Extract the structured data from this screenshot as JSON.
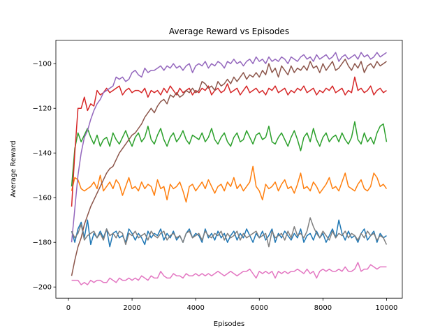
{
  "chart_data": {
    "type": "line",
    "title": "Average Reward vs Episodes",
    "x_label": "Episodes",
    "y_label": "Average Reward",
    "xlim": [
      -395,
      10495
    ],
    "ylim": [
      -205,
      -89.5
    ],
    "xticks": [
      0,
      2000,
      4000,
      6000,
      8000,
      10000
    ],
    "yticks": [
      {
        "value": -200,
        "label": "−200"
      },
      {
        "value": -180,
        "label": "−180"
      },
      {
        "value": -160,
        "label": "−160"
      },
      {
        "value": -140,
        "label": "−140"
      },
      {
        "value": -120,
        "label": "−120"
      },
      {
        "value": -100,
        "label": "−100"
      }
    ],
    "x": [
      100,
      200,
      300,
      400,
      500,
      600,
      700,
      800,
      900,
      1000,
      1100,
      1200,
      1300,
      1400,
      1500,
      1600,
      1700,
      1800,
      1900,
      2000,
      2100,
      2200,
      2300,
      2400,
      2500,
      2600,
      2700,
      2800,
      2900,
      3000,
      3100,
      3200,
      3300,
      3400,
      3500,
      3600,
      3700,
      3800,
      3900,
      4000,
      4100,
      4200,
      4300,
      4400,
      4500,
      4600,
      4700,
      4800,
      4900,
      5000,
      5100,
      5200,
      5300,
      5400,
      5500,
      5600,
      5700,
      5800,
      5900,
      6000,
      6100,
      6200,
      6300,
      6400,
      6500,
      6600,
      6700,
      6800,
      6900,
      7000,
      7100,
      7200,
      7300,
      7400,
      7500,
      7600,
      7700,
      7800,
      7900,
      8000,
      8100,
      8200,
      8300,
      8400,
      8500,
      8600,
      8700,
      8800,
      8900,
      9000,
      9100,
      9200,
      9300,
      9400,
      9500,
      9600,
      9700,
      9800,
      9900,
      10000
    ],
    "series": [
      {
        "color": "#1f77b4",
        "values": [
          -175,
          -180,
          -174,
          -171,
          -178,
          -170,
          -181,
          -176,
          -178,
          -175,
          -178,
          -174,
          -182,
          -176,
          -175,
          -178,
          -177,
          -180,
          -174,
          -176,
          -179,
          -176,
          -178,
          -181,
          -175,
          -178,
          -176,
          -177,
          -174,
          -179,
          -176,
          -178,
          -175,
          -179,
          -177,
          -180,
          -176,
          -174,
          -178,
          -176,
          -177,
          -180,
          -174,
          -178,
          -176,
          -179,
          -175,
          -178,
          -176,
          -180,
          -177,
          -175,
          -179,
          -176,
          -178,
          -174,
          -177,
          -180,
          -176,
          -178,
          -175,
          -179,
          -177,
          -174,
          -180,
          -176,
          -178,
          -175,
          -177,
          -179,
          -176,
          -178,
          -174,
          -180,
          -177,
          -176,
          -179,
          -175,
          -178,
          -176,
          -180,
          -177,
          -174,
          -178,
          -170,
          -176,
          -179,
          -175,
          -178,
          -177,
          -180,
          -176,
          -174,
          -179,
          -177,
          -175,
          -180,
          -176,
          -178,
          -177
        ]
      },
      {
        "color": "#ff7f0e",
        "values": [
          -157,
          -151,
          -152,
          -156,
          -157,
          -156,
          -155,
          -153,
          -156,
          -150,
          -157,
          -155,
          -153,
          -156,
          -152,
          -154,
          -159,
          -155,
          -151,
          -156,
          -155,
          -157,
          -153,
          -156,
          -154,
          -155,
          -159,
          -152,
          -156,
          -155,
          -161,
          -154,
          -156,
          -155,
          -153,
          -157,
          -162,
          -155,
          -154,
          -157,
          -155,
          -153,
          -156,
          -152,
          -155,
          -158,
          -155,
          -154,
          -157,
          -153,
          -155,
          -151,
          -156,
          -154,
          -157,
          -155,
          -153,
          -146,
          -155,
          -157,
          -161,
          -154,
          -156,
          -155,
          -153,
          -157,
          -154,
          -152,
          -156,
          -155,
          -158,
          -154,
          -149,
          -156,
          -155,
          -157,
          -153,
          -155,
          -158,
          -156,
          -154,
          -151,
          -156,
          -155,
          -157,
          -153,
          -149,
          -155,
          -156,
          -157,
          -154,
          -152,
          -156,
          -157,
          -155,
          -149,
          -151,
          -155,
          -154,
          -156
        ]
      },
      {
        "color": "#2ca02c",
        "values": [
          -155,
          -138,
          -131,
          -135,
          -132,
          -129,
          -133,
          -136,
          -132,
          -137,
          -134,
          -133,
          -137,
          -131,
          -134,
          -136,
          -133,
          -130,
          -134,
          -137,
          -133,
          -131,
          -135,
          -133,
          -128,
          -134,
          -136,
          -132,
          -129,
          -134,
          -137,
          -133,
          -131,
          -135,
          -133,
          -130,
          -134,
          -136,
          -132,
          -133,
          -134,
          -131,
          -135,
          -133,
          -129,
          -134,
          -136,
          -133,
          -131,
          -135,
          -137,
          -133,
          -131,
          -135,
          -134,
          -130,
          -133,
          -136,
          -132,
          -131,
          -134,
          -133,
          -128,
          -135,
          -136,
          -133,
          -131,
          -134,
          -137,
          -133,
          -130,
          -134,
          -139,
          -133,
          -131,
          -135,
          -129,
          -134,
          -137,
          -133,
          -131,
          -135,
          -133,
          -132,
          -135,
          -131,
          -134,
          -136,
          -133,
          -126,
          -134,
          -136,
          -131,
          -135,
          -133,
          -136,
          -131,
          -128,
          -127,
          -135
        ]
      },
      {
        "color": "#d62728",
        "values": [
          -164,
          -140,
          -120,
          -120,
          -115,
          -121,
          -118,
          -119,
          -112,
          -114,
          -113,
          -111,
          -113,
          -112,
          -111,
          -110,
          -114,
          -112,
          -111,
          -113,
          -112,
          -112,
          -113,
          -111,
          -115,
          -112,
          -113,
          -112,
          -114,
          -111,
          -113,
          -110,
          -112,
          -114,
          -111,
          -113,
          -112,
          -111,
          -114,
          -112,
          -113,
          -111,
          -112,
          -110,
          -114,
          -112,
          -111,
          -113,
          -112,
          -109,
          -113,
          -112,
          -111,
          -114,
          -112,
          -110,
          -113,
          -112,
          -111,
          -113,
          -112,
          -114,
          -111,
          -112,
          -110,
          -113,
          -112,
          -111,
          -114,
          -112,
          -113,
          -111,
          -112,
          -110,
          -113,
          -112,
          -111,
          -114,
          -112,
          -113,
          -111,
          -112,
          -110,
          -113,
          -112,
          -111,
          -114,
          -112,
          -113,
          -106,
          -112,
          -111,
          -113,
          -112,
          -110,
          -114,
          -112,
          -111,
          -113,
          -112
        ]
      },
      {
        "color": "#9467bd",
        "values": [
          -180,
          -165,
          -150,
          -140,
          -133,
          -130,
          -125,
          -121,
          -118,
          -116,
          -113,
          -112,
          -111,
          -110,
          -106,
          -107,
          -106,
          -108,
          -107,
          -104,
          -103,
          -105,
          -106,
          -102,
          -104,
          -103,
          -103,
          -102,
          -101,
          -103,
          -101,
          -102,
          -100,
          -102,
          -101,
          -103,
          -101,
          -100,
          -104,
          -101,
          -100,
          -101,
          -99,
          -102,
          -100,
          -101,
          -99,
          -100,
          -102,
          -99,
          -100,
          -98,
          -100,
          -99,
          -101,
          -99,
          -98,
          -100,
          -97,
          -99,
          -98,
          -100,
          -97,
          -99,
          -98,
          -99,
          -97,
          -98,
          -100,
          -97,
          -98,
          -99,
          -97,
          -96,
          -98,
          -97,
          -99,
          -96,
          -98,
          -97,
          -96,
          -98,
          -97,
          -95,
          -99,
          -97,
          -96,
          -98,
          -97,
          -96,
          -98,
          -95,
          -97,
          -96,
          -98,
          -97,
          -95,
          -97,
          -96,
          -95
        ]
      },
      {
        "color": "#8c564b",
        "values": [
          -195,
          -188,
          -182,
          -178,
          -172,
          -168,
          -164,
          -161,
          -158,
          -155,
          -152,
          -149,
          -147,
          -146,
          -143,
          -140,
          -138,
          -136,
          -134,
          -132,
          -131,
          -129,
          -127,
          -124,
          -122,
          -120,
          -122,
          -119,
          -117,
          -116,
          -118,
          -114,
          -115,
          -113,
          -115,
          -114,
          -112,
          -113,
          -111,
          -113,
          -112,
          -108,
          -109,
          -111,
          -110,
          -112,
          -108,
          -110,
          -109,
          -107,
          -109,
          -106,
          -108,
          -106,
          -104,
          -107,
          -105,
          -106,
          -104,
          -106,
          -103,
          -105,
          -100,
          -104,
          -102,
          -106,
          -101,
          -103,
          -105,
          -101,
          -104,
          -102,
          -103,
          -101,
          -103,
          -99,
          -102,
          -101,
          -104,
          -100,
          -103,
          -101,
          -99,
          -103,
          -102,
          -100,
          -98,
          -101,
          -103,
          -100,
          -102,
          -99,
          -104,
          -101,
          -100,
          -102,
          -99,
          -101,
          -100,
          -99
        ]
      },
      {
        "color": "#e377c2",
        "values": [
          -197,
          -197,
          -197,
          -199,
          -198,
          -199,
          -197,
          -198,
          -197,
          -197,
          -198,
          -198,
          -196,
          -197,
          -198,
          -196,
          -197,
          -197,
          -196,
          -197,
          -196,
          -197,
          -195,
          -196,
          -197,
          -195,
          -196,
          -196,
          -193,
          -195,
          -196,
          -196,
          -194,
          -195,
          -195,
          -196,
          -194,
          -195,
          -195,
          -194,
          -195,
          -194,
          -195,
          -194,
          -195,
          -194,
          -193,
          -194,
          -195,
          -194,
          -193,
          -194,
          -195,
          -194,
          -193,
          -193,
          -192,
          -194,
          -196,
          -193,
          -194,
          -193,
          -194,
          -193,
          -196,
          -193,
          -194,
          -193,
          -194,
          -193,
          -193,
          -192,
          -193,
          -194,
          -192,
          -194,
          -193,
          -196,
          -193,
          -192,
          -193,
          -192,
          -193,
          -193,
          -192,
          -193,
          -191,
          -193,
          -193,
          -192,
          -189,
          -193,
          -192,
          -192,
          -190,
          -191,
          -192,
          -191,
          -191,
          -191
        ]
      },
      {
        "color": "#7f7f7f",
        "values": [
          -175,
          -178,
          -176,
          -172,
          -179,
          -177,
          -176,
          -175,
          -178,
          -176,
          -179,
          -174,
          -177,
          -176,
          -178,
          -175,
          -176,
          -181,
          -176,
          -177,
          -175,
          -178,
          -177,
          -176,
          -179,
          -175,
          -177,
          -178,
          -176,
          -175,
          -179,
          -177,
          -176,
          -178,
          -177,
          -180,
          -176,
          -175,
          -178,
          -177,
          -176,
          -179,
          -175,
          -177,
          -178,
          -176,
          -177,
          -175,
          -179,
          -176,
          -178,
          -177,
          -175,
          -179,
          -176,
          -178,
          -177,
          -176,
          -175,
          -178,
          -177,
          -176,
          -182,
          -175,
          -178,
          -177,
          -176,
          -179,
          -175,
          -178,
          -173,
          -177,
          -176,
          -178,
          -175,
          -169,
          -173,
          -176,
          -178,
          -175,
          -177,
          -179,
          -175,
          -178,
          -176,
          -177,
          -175,
          -178,
          -176,
          -177,
          -179,
          -176,
          -178,
          -175,
          -177,
          -176,
          -179,
          -177,
          -178,
          -181
        ]
      }
    ]
  }
}
